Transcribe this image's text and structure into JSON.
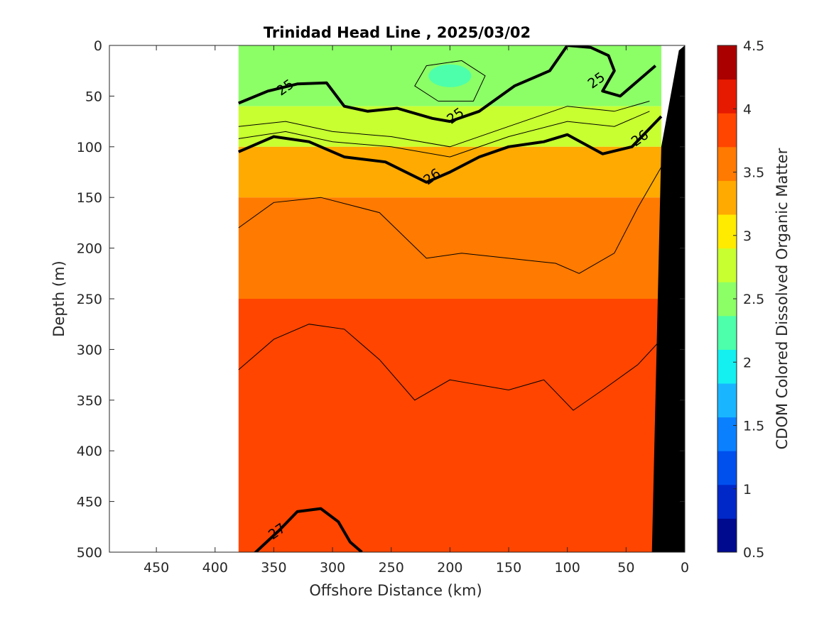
{
  "chart_data": {
    "type": "contour",
    "title": "Trinidad Head Line , 2025/03/02",
    "xlabel": "Offshore Distance (km)",
    "ylabel": "Depth (m)",
    "colorbar_label": "CDOM Colored Dissolved Organic Matter",
    "xlim": [
      490,
      0
    ],
    "ylim": [
      500,
      0
    ],
    "x_reversed": true,
    "y_reversed": true,
    "x_ticks": [
      450,
      400,
      350,
      300,
      250,
      200,
      150,
      100,
      50,
      0
    ],
    "y_ticks": [
      0,
      50,
      100,
      150,
      200,
      250,
      300,
      350,
      400,
      450,
      500
    ],
    "colorbar": {
      "range": [
        0.5,
        4.5
      ],
      "ticks": [
        0.5,
        1,
        1.5,
        2,
        2.5,
        3,
        3.5,
        4,
        4.5
      ],
      "tick_labels": [
        "0.5",
        "1",
        "1.5",
        "2",
        "2.5",
        "3",
        "3.5",
        "4",
        "4.5"
      ],
      "colors": [
        "#000a8f",
        "#0028c8",
        "#0050ee",
        "#0a80ff",
        "#19b6ff",
        "#14f0f0",
        "#4dffaa",
        "#8cff66",
        "#c8ff30",
        "#ffeb00",
        "#ffaa00",
        "#ff7a00",
        "#ff4500",
        "#e61a00",
        "#aa0000"
      ]
    },
    "data_extent_x": [
      380,
      20
    ],
    "field": {
      "depths": [
        0,
        50,
        100,
        150,
        200,
        250,
        300,
        350,
        400,
        450,
        500
      ],
      "bands": [
        {
          "depth_range": [
            0,
            60
          ],
          "cdom": 2.5
        },
        {
          "depth_range": [
            60,
            100
          ],
          "cdom": 2.8
        },
        {
          "depth_range": [
            100,
            150
          ],
          "cdom": 3.2
        },
        {
          "depth_range": [
            150,
            250
          ],
          "cdom": 3.6
        },
        {
          "depth_range": [
            250,
            500
          ],
          "cdom": 3.9
        }
      ],
      "local_minimum": {
        "x": 200,
        "depth": 30,
        "cdom": 2.1
      }
    },
    "density_contours": [
      {
        "level": "25",
        "points": [
          [
            380,
            57
          ],
          [
            355,
            45
          ],
          [
            330,
            38
          ],
          [
            305,
            37
          ],
          [
            290,
            60
          ],
          [
            270,
            65
          ],
          [
            245,
            62
          ],
          [
            215,
            72
          ],
          [
            200,
            75
          ],
          [
            175,
            65
          ],
          [
            145,
            40
          ],
          [
            115,
            25
          ],
          [
            100,
            0
          ],
          [
            80,
            2
          ],
          [
            65,
            10
          ],
          [
            60,
            25
          ],
          [
            70,
            45
          ],
          [
            55,
            50
          ],
          [
            40,
            35
          ],
          [
            25,
            20
          ]
        ]
      },
      {
        "level": "26",
        "points": [
          [
            380,
            105
          ],
          [
            350,
            90
          ],
          [
            320,
            95
          ],
          [
            290,
            110
          ],
          [
            255,
            115
          ],
          [
            220,
            135
          ],
          [
            200,
            125
          ],
          [
            175,
            110
          ],
          [
            150,
            100
          ],
          [
            120,
            95
          ],
          [
            100,
            88
          ],
          [
            70,
            107
          ],
          [
            45,
            100
          ],
          [
            20,
            70
          ]
        ]
      },
      {
        "level": "27",
        "points": [
          [
            370,
            505
          ],
          [
            345,
            478
          ],
          [
            330,
            460
          ],
          [
            310,
            457
          ],
          [
            295,
            470
          ],
          [
            285,
            490
          ],
          [
            275,
            500
          ]
        ]
      }
    ],
    "thin_contours": [
      [
        [
          380,
          180
        ],
        [
          350,
          155
        ],
        [
          310,
          150
        ],
        [
          260,
          165
        ],
        [
          220,
          210
        ],
        [
          190,
          205
        ],
        [
          150,
          210
        ],
        [
          110,
          215
        ],
        [
          90,
          225
        ],
        [
          60,
          205
        ],
        [
          40,
          160
        ],
        [
          20,
          120
        ]
      ],
      [
        [
          380,
          320
        ],
        [
          350,
          290
        ],
        [
          320,
          275
        ],
        [
          290,
          280
        ],
        [
          260,
          310
        ],
        [
          230,
          350
        ],
        [
          200,
          330
        ],
        [
          150,
          340
        ],
        [
          120,
          330
        ],
        [
          95,
          360
        ],
        [
          70,
          340
        ],
        [
          40,
          315
        ],
        [
          20,
          290
        ]
      ],
      [
        [
          380,
          80
        ],
        [
          340,
          75
        ],
        [
          300,
          85
        ],
        [
          250,
          90
        ],
        [
          200,
          100
        ],
        [
          150,
          80
        ],
        [
          100,
          60
        ],
        [
          60,
          65
        ],
        [
          30,
          55
        ]
      ],
      [
        [
          380,
          92
        ],
        [
          340,
          85
        ],
        [
          300,
          95
        ],
        [
          250,
          100
        ],
        [
          200,
          110
        ],
        [
          150,
          90
        ],
        [
          100,
          75
        ],
        [
          60,
          80
        ],
        [
          30,
          65
        ]
      ],
      [
        [
          210,
          55
        ],
        [
          230,
          40
        ],
        [
          220,
          20
        ],
        [
          190,
          15
        ],
        [
          170,
          30
        ],
        [
          180,
          55
        ],
        [
          210,
          55
        ]
      ]
    ],
    "contour_labels": [
      {
        "text": "25",
        "x": 340,
        "depth": 42
      },
      {
        "text": "25",
        "x": 195,
        "depth": 70
      },
      {
        "text": "25",
        "x": 75,
        "depth": 35
      },
      {
        "text": "26",
        "x": 215,
        "depth": 130
      },
      {
        "text": "26",
        "x": 38,
        "depth": 92
      },
      {
        "text": "27",
        "x": 347,
        "depth": 480
      }
    ],
    "bottom_topography": {
      "color": "#000000",
      "points": [
        [
          0,
          0
        ],
        [
          0,
          500
        ],
        [
          28,
          500
        ],
        [
          20,
          100
        ],
        [
          5,
          5
        ]
      ]
    }
  }
}
